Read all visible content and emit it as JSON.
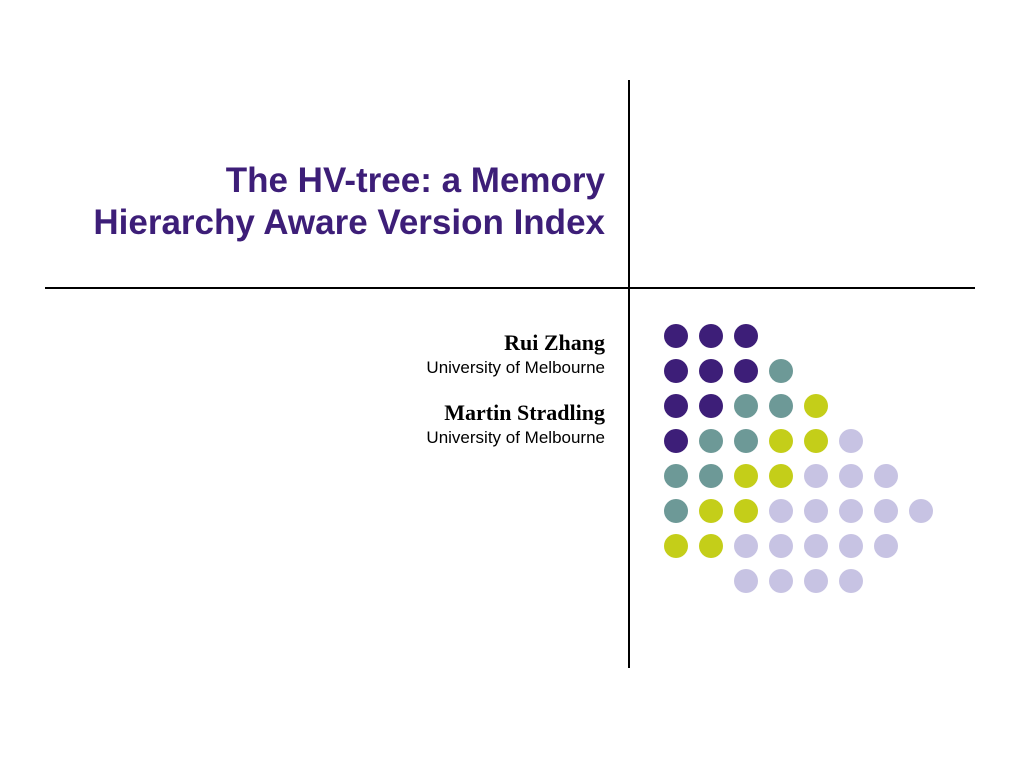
{
  "title": "The HV-tree: a Memory Hierarchy Aware Version Index",
  "title_color": "#3d1e78",
  "authors": [
    {
      "name": "Rui Zhang",
      "affiliation": "University of Melbourne"
    },
    {
      "name": "Martin Stradling",
      "affiliation": "University of Melbourne"
    }
  ],
  "line_color": "#000000",
  "palette": {
    "purple": "#3d1e78",
    "teal": "#6d9997",
    "yellow": "#c4ce19",
    "lavender": "#c7c3e3"
  },
  "dot_grid": {
    "rows": 8,
    "cols": 8,
    "dot_size": 24,
    "gap": 11,
    "cells": [
      [
        "purple",
        "purple",
        "purple",
        null,
        null,
        null,
        null,
        null
      ],
      [
        "purple",
        "purple",
        "purple",
        "teal",
        null,
        null,
        null,
        null
      ],
      [
        "purple",
        "purple",
        "teal",
        "teal",
        "yellow",
        null,
        null,
        null
      ],
      [
        "purple",
        "teal",
        "teal",
        "yellow",
        "yellow",
        "lavender",
        null,
        null
      ],
      [
        "teal",
        "teal",
        "yellow",
        "yellow",
        "lavender",
        "lavender",
        "lavender",
        null
      ],
      [
        "teal",
        "yellow",
        "yellow",
        "lavender",
        "lavender",
        "lavender",
        "lavender",
        "lavender"
      ],
      [
        "yellow",
        "yellow",
        "lavender",
        "lavender",
        "lavender",
        "lavender",
        "lavender",
        null
      ],
      [
        null,
        null,
        "lavender",
        "lavender",
        "lavender",
        "lavender",
        null,
        null
      ]
    ]
  }
}
